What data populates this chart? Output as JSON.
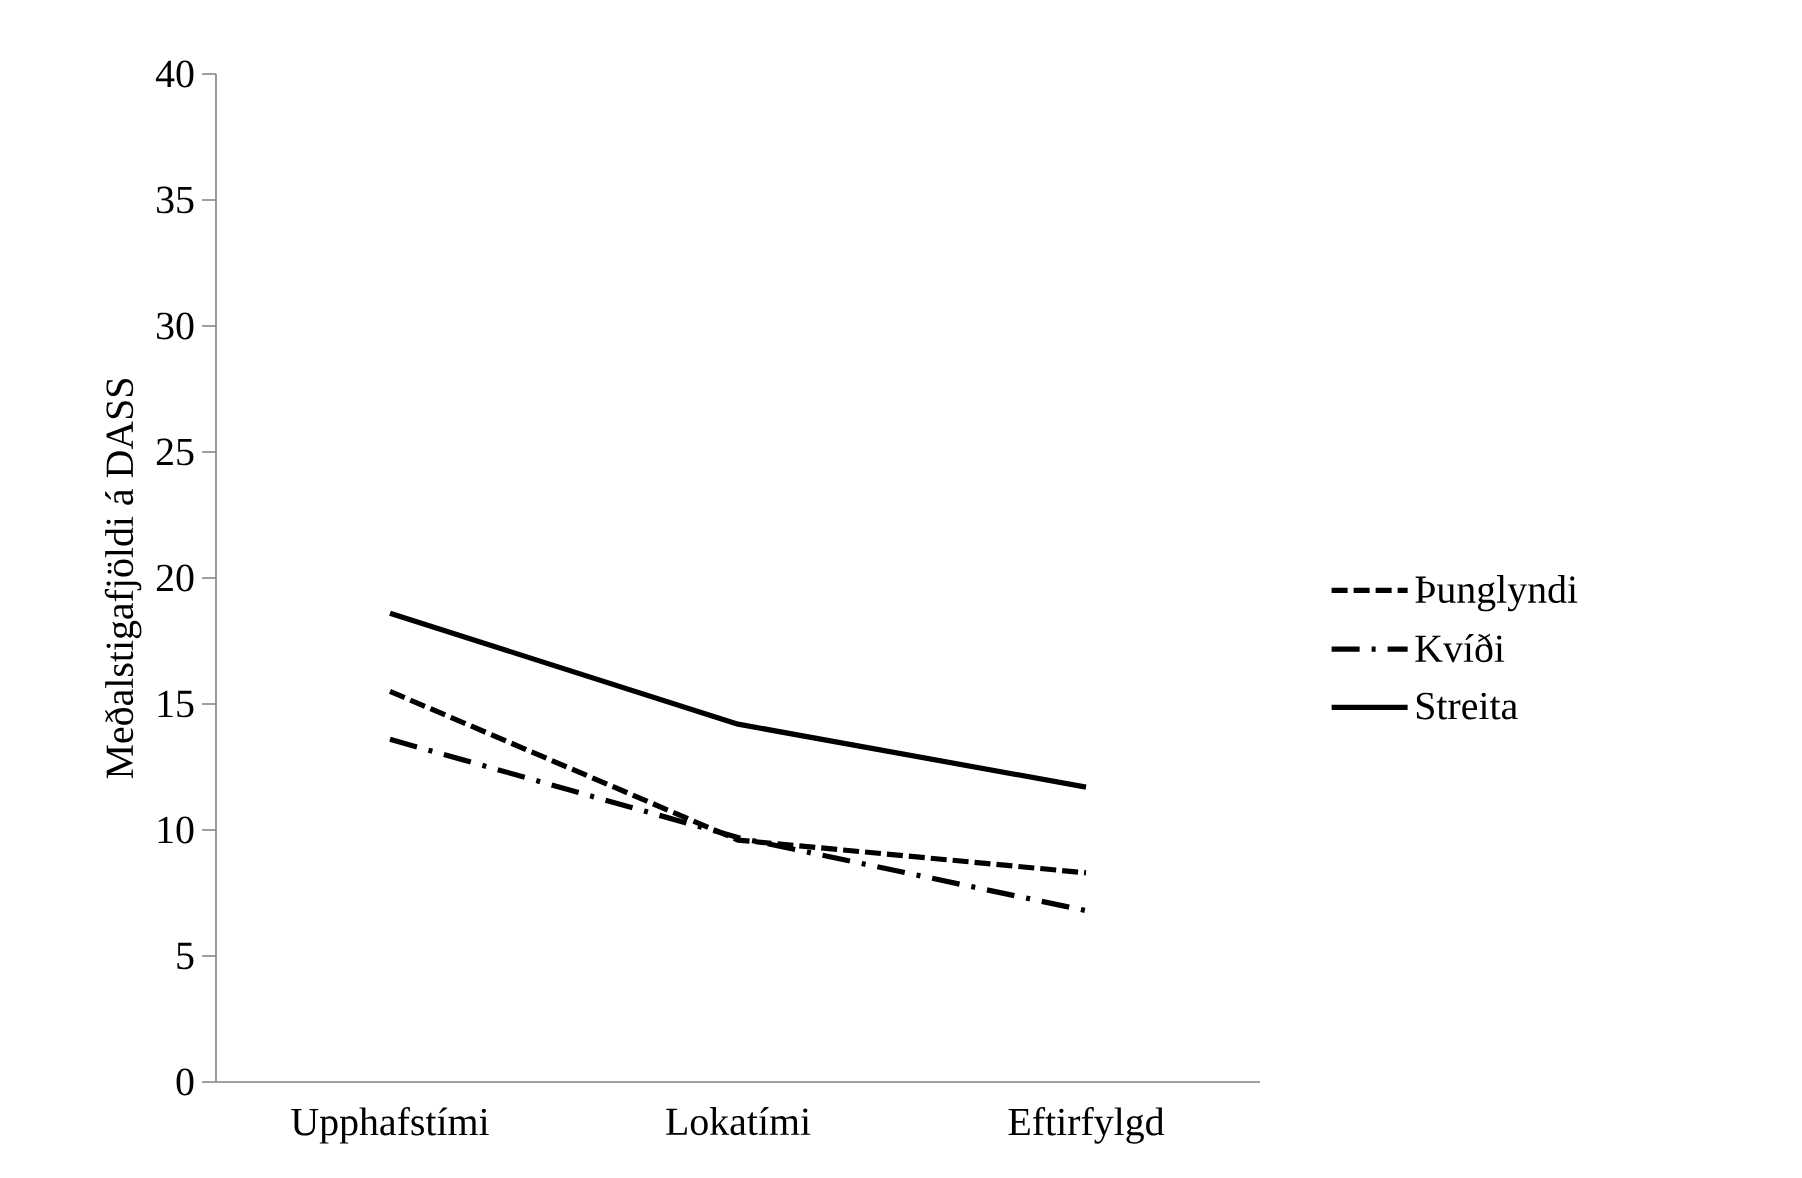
{
  "chart_data": {
    "type": "line",
    "ylabel": "Meðalstigafjöldi á DASS",
    "categories": [
      "Upphafstími",
      "Lokatími",
      "Eftirfylgd"
    ],
    "ylim": [
      0,
      40
    ],
    "yticks": [
      0,
      5,
      10,
      15,
      20,
      25,
      30,
      35,
      40
    ],
    "legend": "right",
    "grid": false,
    "series": [
      {
        "name": "Þunglyndi",
        "color": "#000000",
        "line_style": "dashed",
        "values": [
          15.5,
          9.6,
          8.3
        ]
      },
      {
        "name": "Kvíði",
        "color": "#000000",
        "line_style": "dashdot",
        "values": [
          13.6,
          9.7,
          6.8
        ]
      },
      {
        "name": "Streita",
        "color": "#000000",
        "line_style": "solid",
        "values": [
          18.6,
          14.2,
          11.7
        ]
      }
    ]
  }
}
